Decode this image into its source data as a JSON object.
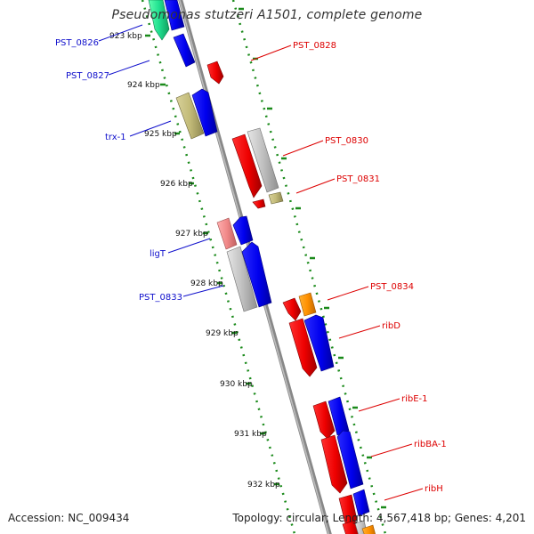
{
  "title": "Pseudomonas stutzeri A1501, complete genome",
  "footer": {
    "accession": "Accession: NC_009434",
    "summary": "Topology: circular; Length: 4,567,418 bp; Genes: 4,201"
  },
  "colors": {
    "backbone": "#888888",
    "tick": "#1a8a1a",
    "left_label": "#1010cc",
    "right_label": "#dd0000"
  },
  "ticks": [
    "923 kbp",
    "924 kbp",
    "925 kbp",
    "926 kbp",
    "927 kbp",
    "928 kbp",
    "929 kbp",
    "930 kbp",
    "931 kbp",
    "932 kbp"
  ],
  "genes_left": [
    {
      "label": "PST_0826"
    },
    {
      "label": "PST_0827"
    },
    {
      "label": "trx-1"
    },
    {
      "label": "ligT"
    },
    {
      "label": "PST_0833"
    }
  ],
  "genes_right": [
    {
      "label": "PST_0828"
    },
    {
      "label": "PST_0830"
    },
    {
      "label": "PST_0831"
    },
    {
      "label": "PST_0834"
    },
    {
      "label": "ribD"
    },
    {
      "label": "ribE-1"
    },
    {
      "label": "ribBA-1"
    },
    {
      "label": "ribH"
    }
  ]
}
